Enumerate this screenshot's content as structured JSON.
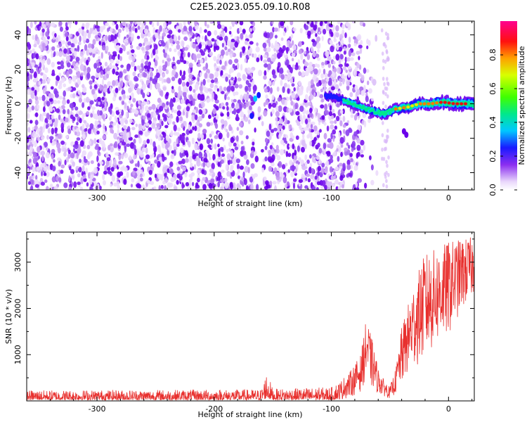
{
  "title": "C2E5.2023.055.09.10.R08",
  "chart_data": [
    {
      "type": "heatmap",
      "xlabel": "Height of straight line (km)",
      "ylabel": "Frequency (Hz)",
      "xlim": [
        -360,
        22
      ],
      "ylim": [
        -50,
        48
      ],
      "xticks": [
        -300,
        -200,
        -100,
        0
      ],
      "yticks": [
        -40,
        -20,
        0,
        20,
        40
      ],
      "xtick_labels": [
        "-300",
        "-200",
        "-100",
        "0"
      ],
      "ytick_labels": [
        "-40",
        "-20",
        "0",
        "20",
        "40"
      ],
      "colorbar": {
        "label": "Normalized spectral amplitude",
        "range": [
          0,
          1
        ],
        "ticks": [
          0.0,
          0.2,
          0.4,
          0.6,
          0.8
        ],
        "tick_labels": [
          "0.0",
          "0.2",
          "0.4",
          "0.6",
          "0.8"
        ],
        "colormap": "white-violet-blue-cyan-green-yellow-red-magenta"
      },
      "features": {
        "noise_region_x": [
          -360,
          -85
        ],
        "signal_ridge": [
          [
            -105,
            5
          ],
          [
            -95,
            3
          ],
          [
            -85,
            1
          ],
          [
            -75,
            -2
          ],
          [
            -65,
            -4
          ],
          [
            -55,
            -6
          ],
          [
            -45,
            -3
          ],
          [
            -35,
            -2
          ],
          [
            -25,
            0
          ],
          [
            -15,
            0
          ],
          [
            -5,
            1
          ],
          [
            5,
            0
          ],
          [
            22,
            0
          ]
        ],
        "clear_gap_x": [
          -165,
          -158
        ]
      }
    },
    {
      "type": "line",
      "xlabel": "Height of straight line (km)",
      "ylabel": "SNR (10 * v/v)",
      "xlim": [
        -360,
        22
      ],
      "ylim": [
        0,
        3650
      ],
      "xticks": [
        -300,
        -200,
        -100,
        0
      ],
      "yticks": [
        1000,
        2000,
        3000
      ],
      "xtick_labels": [
        "-300",
        "-200",
        "-100",
        "0"
      ],
      "ytick_labels": [
        "1000",
        "2000",
        "3000"
      ],
      "series": [
        {
          "name": "SNR",
          "color": "#e8302e",
          "envelope_x": [
            -360,
            -160,
            -155,
            -150,
            -100,
            -85,
            -75,
            -70,
            -65,
            -60,
            -55,
            -50,
            -45,
            -40,
            -30,
            -20,
            -10,
            0,
            10,
            22
          ],
          "envelope_low": [
            20,
            20,
            50,
            20,
            20,
            60,
            200,
            500,
            250,
            150,
            100,
            50,
            150,
            350,
            700,
            900,
            1200,
            1400,
            1900,
            2300
          ],
          "envelope_high": [
            230,
            250,
            650,
            260,
            300,
            600,
            1000,
            1800,
            1300,
            700,
            450,
            300,
            700,
            1600,
            2500,
            3200,
            3300,
            3450,
            3500,
            3550
          ]
        }
      ]
    }
  ]
}
